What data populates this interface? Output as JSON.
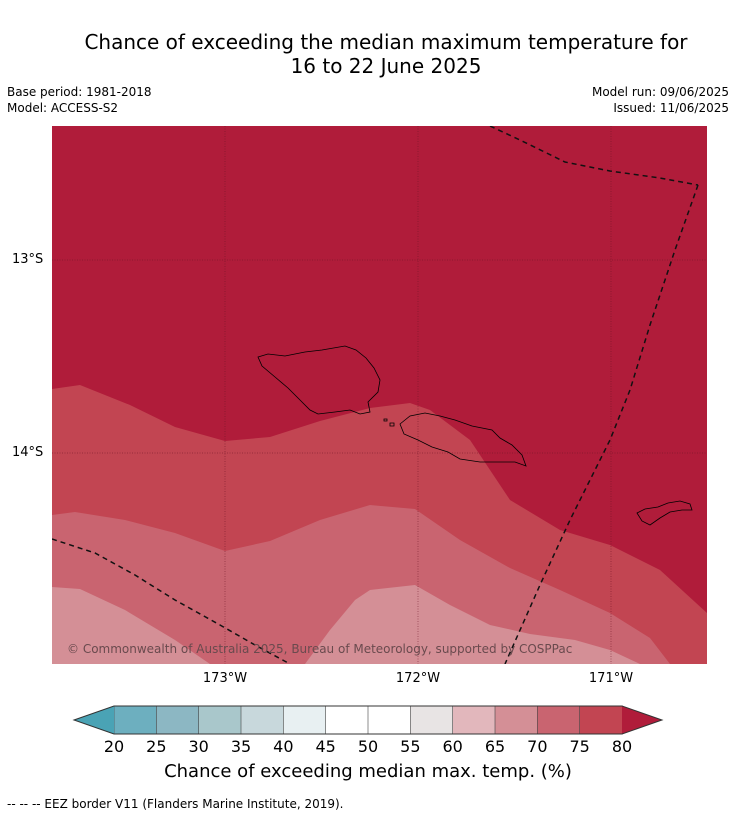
{
  "title": {
    "line1": "Chance of exceeding the median maximum temperature for",
    "line2": "16 to 22 June 2025"
  },
  "meta": {
    "base_period": "Base period: 1981-2018",
    "model": "Model: ACCESS-S2",
    "model_run": "Model run: 09/06/2025",
    "issued": "Issued: 11/06/2025"
  },
  "map": {
    "lat_labels": [
      "13°S",
      "14°S"
    ],
    "lon_labels": [
      "173°W",
      "172°W",
      "171°W"
    ],
    "copyright": "© Commonwealth of Australia 2025, Bureau of Meteorology, supported by COSPPac",
    "band_colors": {
      "above_80": "#b01c3a",
      "75_80": "#c24552",
      "70_75": "#c96470",
      "65_70": "#d48f96"
    }
  },
  "colorbar": {
    "ticks": [
      "20",
      "25",
      "30",
      "35",
      "40",
      "45",
      "50",
      "55",
      "60",
      "65",
      "70",
      "75",
      "80"
    ],
    "colors": [
      "#4aa3b5",
      "#6dafbf",
      "#8cb7c3",
      "#a9c7cb",
      "#c8d8dc",
      "#e8f0f2",
      "#ffffff",
      "#ffffff",
      "#e8e4e4",
      "#e2b7bc",
      "#d48f96",
      "#c96470",
      "#c24552",
      "#b01c3a"
    ],
    "title": "Chance of exceeding median max. temp. (%)"
  },
  "footnote": "--  --  -- EEZ border V11 (Flanders Marine Institute, 2019)."
}
